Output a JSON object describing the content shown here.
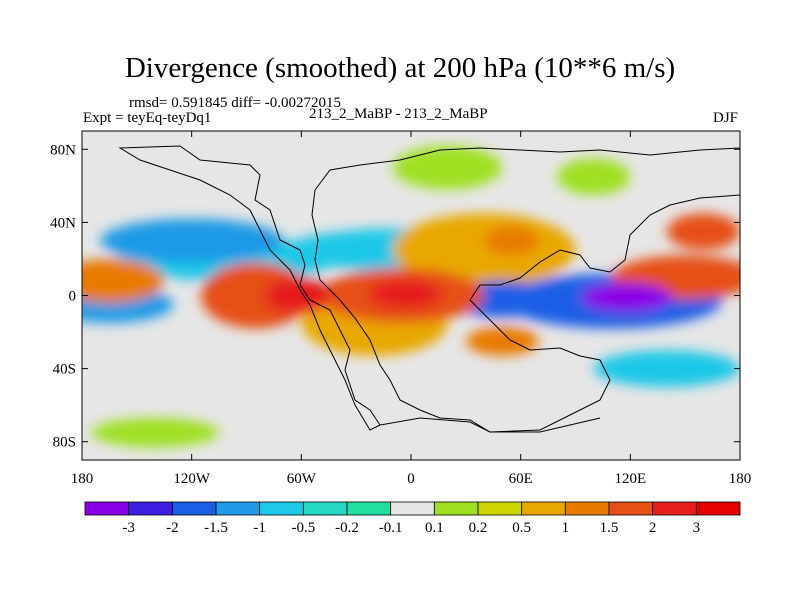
{
  "chart_data": {
    "type": "heatmap",
    "title": "Divergence (smoothed) at 200 hPa (10**6 m/s)",
    "stats_text": "rmsd= 0.591845 diff= -0.00272015",
    "experiment_label": "Expt = teyEq-teyDq1",
    "center_label": "213_2_MaBP - 213_2_MaBP",
    "season": "DJF",
    "x_axis": {
      "range": [
        -180,
        180
      ],
      "ticks": [
        {
          "value": -180,
          "label": "180"
        },
        {
          "value": -120,
          "label": "120W"
        },
        {
          "value": -60,
          "label": "60W"
        },
        {
          "value": 0,
          "label": "0"
        },
        {
          "value": 60,
          "label": "60E"
        },
        {
          "value": 120,
          "label": "120E"
        },
        {
          "value": 180,
          "label": "180"
        }
      ]
    },
    "y_axis": {
      "range": [
        -90,
        90
      ],
      "ticks": [
        {
          "value": 80,
          "label": "80N"
        },
        {
          "value": 40,
          "label": "40N"
        },
        {
          "value": 0,
          "label": "0"
        },
        {
          "value": -40,
          "label": "40S"
        },
        {
          "value": -80,
          "label": "80S"
        }
      ]
    },
    "colorbar": {
      "labels": [
        "-3",
        "-2",
        "-1.5",
        "-1",
        "-0.5",
        "-0.2",
        "-0.1",
        "0.1",
        "0.2",
        "0.5",
        "1",
        "1.5",
        "2",
        "3"
      ],
      "colors": [
        "#8a00e6",
        "#3c1fe0",
        "#1a5ee6",
        "#1e9ae6",
        "#1ec8e8",
        "#24d8c2",
        "#1fe0a0",
        "#e6e6e6",
        "#9fe020",
        "#ccd600",
        "#e8a800",
        "#e87a00",
        "#e65014",
        "#e61e1e",
        "#e60000"
      ]
    },
    "features": [
      {
        "lon": -85,
        "lat": 0,
        "w": 30,
        "h": 18,
        "level": 2
      },
      {
        "lon": -62,
        "lat": 0,
        "w": 18,
        "h": 10,
        "level": 3
      },
      {
        "lon": -165,
        "lat": 8,
        "w": 30,
        "h": 12,
        "level": 1.5
      },
      {
        "lon": -5,
        "lat": 0,
        "w": 45,
        "h": 15,
        "level": 2
      },
      {
        "lon": -3,
        "lat": 1,
        "w": 20,
        "h": 8,
        "level": 3
      },
      {
        "lon": -20,
        "lat": -15,
        "w": 40,
        "h": 18,
        "level": 1
      },
      {
        "lon": 40,
        "lat": 25,
        "w": 50,
        "h": 20,
        "level": 1
      },
      {
        "lon": 55,
        "lat": 30,
        "w": 15,
        "h": 8,
        "level": 1.5
      },
      {
        "lon": 150,
        "lat": 10,
        "w": 40,
        "h": 12,
        "level": 2
      },
      {
        "lon": 160,
        "lat": 35,
        "w": 20,
        "h": 10,
        "level": 2
      },
      {
        "lon": 50,
        "lat": -25,
        "w": 20,
        "h": 8,
        "level": 1.5
      },
      {
        "lon": 110,
        "lat": -3,
        "w": 60,
        "h": 15,
        "level": -1.5
      },
      {
        "lon": 118,
        "lat": -1,
        "w": 25,
        "h": 8,
        "level": -3
      },
      {
        "lon": 50,
        "lat": -2,
        "w": 30,
        "h": 10,
        "level": -1.5
      },
      {
        "lon": -165,
        "lat": -5,
        "w": 35,
        "h": 10,
        "level": -1
      },
      {
        "lon": -120,
        "lat": 30,
        "w": 50,
        "h": 12,
        "level": -1
      },
      {
        "lon": -100,
        "lat": 20,
        "w": 60,
        "h": 12,
        "level": -0.5
      },
      {
        "lon": 0,
        "lat": 25,
        "w": 70,
        "h": 12,
        "level": -0.5
      },
      {
        "lon": 140,
        "lat": -40,
        "w": 40,
        "h": 10,
        "level": -0.5
      },
      {
        "lon": 20,
        "lat": 70,
        "w": 30,
        "h": 12,
        "level": 0.2
      },
      {
        "lon": 100,
        "lat": 65,
        "w": 20,
        "h": 10,
        "level": 0.2
      },
      {
        "lon": -140,
        "lat": -75,
        "w": 35,
        "h": 8,
        "level": 0.2
      }
    ]
  }
}
